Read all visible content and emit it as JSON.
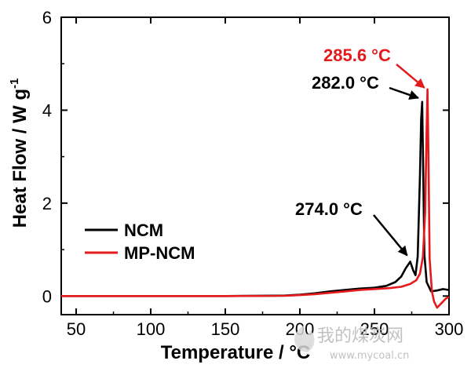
{
  "chart_data": {
    "type": "line",
    "xlabel_main": "Temperature / ",
    "xlabel_unit": "°C",
    "ylabel_main": "Heat Flow / W g",
    "ylabel_sup": "-1",
    "xlim": [
      40,
      300
    ],
    "ylim": [
      -0.4,
      6
    ],
    "xticks": [
      50,
      100,
      150,
      200,
      250,
      300
    ],
    "yticks": [
      0,
      2,
      4,
      6
    ],
    "grid": false,
    "legend_position": "center-left",
    "series": [
      {
        "name": "NCM",
        "color": "#000000",
        "x": [
          40,
          100,
          150,
          190,
          200,
          210,
          220,
          230,
          240,
          250,
          258,
          264,
          268,
          271,
          274,
          276,
          277.5,
          279,
          280.5,
          281.3,
          282,
          282.8,
          283.5,
          285,
          288,
          292,
          296,
          300
        ],
        "y": [
          0.0,
          0.0,
          0.0,
          0.01,
          0.03,
          0.06,
          0.1,
          0.13,
          0.16,
          0.18,
          0.22,
          0.3,
          0.42,
          0.6,
          0.74,
          0.55,
          0.45,
          0.85,
          2.6,
          3.8,
          4.18,
          2.5,
          0.9,
          0.3,
          0.1,
          0.12,
          0.15,
          0.13
        ]
      },
      {
        "name": "MP-NCM",
        "color": "#e41a1c",
        "x": [
          40,
          100,
          150,
          190,
          200,
          210,
          220,
          230,
          240,
          250,
          260,
          268,
          274,
          278,
          280.5,
          282.5,
          284,
          285,
          285.6,
          286.2,
          287,
          288.5,
          290,
          292,
          295,
          298,
          300
        ],
        "y": [
          0.0,
          0.0,
          0.0,
          0.005,
          0.02,
          0.04,
          0.07,
          0.1,
          0.13,
          0.15,
          0.17,
          0.2,
          0.26,
          0.34,
          0.48,
          0.85,
          1.8,
          3.6,
          4.45,
          3.0,
          0.8,
          0.1,
          -0.12,
          -0.25,
          -0.15,
          -0.05,
          -0.02
        ]
      }
    ],
    "annotations": [
      {
        "text": "285.6 °C",
        "color": "#e41a1c",
        "point": [
          285.6,
          4.45
        ]
      },
      {
        "text": "282.0 °C",
        "color": "#000000",
        "point": [
          282.0,
          4.18
        ]
      },
      {
        "text": "274.0 °C",
        "color": "#000000",
        "point": [
          274.0,
          0.74
        ]
      }
    ]
  },
  "watermark": {
    "text_cn": "我的煤炭网",
    "text_url": "www.mycoal.cn"
  }
}
